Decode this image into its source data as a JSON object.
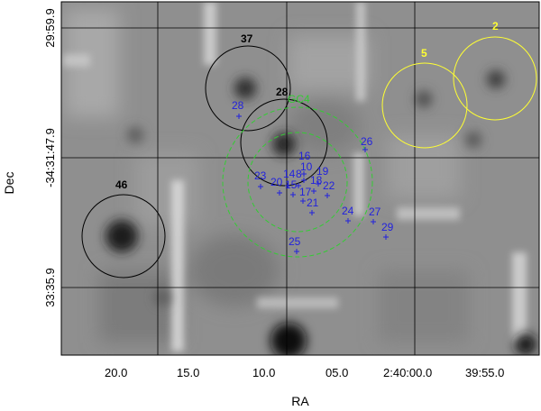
{
  "axes": {
    "x_title": "RA",
    "y_title": "Dec",
    "x_ticks": [
      "20.0",
      "15.0",
      "10.0",
      "05.0",
      "2:40:00.0",
      "39:55.0"
    ],
    "y_ticks": [
      "29:59.9",
      "-34:31:47.9",
      "33:35.9"
    ]
  },
  "colors": {
    "black_circles": "#000000",
    "yellow_circles": "#ffff33",
    "gc_circles": "#33cc33",
    "sources": "#2222dd"
  },
  "regions": [
    {
      "label": "37",
      "style": "black"
    },
    {
      "label": "28",
      "style": "black"
    },
    {
      "label": "46",
      "style": "black"
    },
    {
      "label": "5",
      "style": "yellow"
    },
    {
      "label": "2",
      "style": "yellow"
    }
  ],
  "cluster": {
    "label": "GC4"
  },
  "sources": [
    "28",
    "26",
    "16",
    "10",
    "19",
    "23",
    "14",
    "8",
    "20",
    "15",
    "18",
    "22",
    "17",
    "21",
    "24",
    "27",
    "29",
    "25"
  ]
}
